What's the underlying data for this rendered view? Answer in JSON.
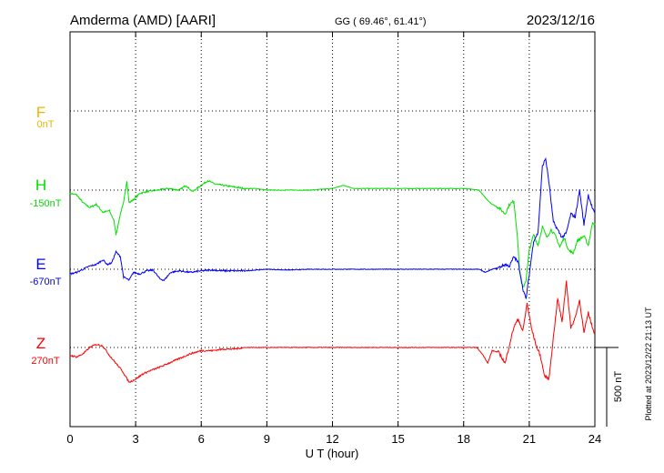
{
  "chart_data": {
    "type": "line",
    "header": {
      "station": "Amderma (AMD)  [AARI]",
      "coords": "GG ( 69.46°,  61.41°)",
      "date": "2023/12/16"
    },
    "xlabel": "U T (hour)",
    "xlim": [
      0,
      24
    ],
    "xticks": [
      "0",
      "3",
      "6",
      "9",
      "12",
      "15",
      "18",
      "21",
      "24"
    ],
    "scale_bar": {
      "label": "500 nT",
      "value_nT": 500
    },
    "plotted_note": "Plotted at 2023/12/22 21:13 UT",
    "grid": true,
    "colors": {
      "F": "#f0b400",
      "H": "#00e000",
      "E": "#0000ff",
      "Z": "#ff0000"
    },
    "series": [
      {
        "name": "F",
        "baseline": "0nT",
        "points": []
      },
      {
        "name": "H",
        "baseline": "-150nT",
        "points": [
          [
            0,
            -20
          ],
          [
            0.3,
            -30
          ],
          [
            0.6,
            -80
          ],
          [
            0.9,
            -110
          ],
          [
            1.2,
            -90
          ],
          [
            1.5,
            -140
          ],
          [
            1.8,
            -130
          ],
          [
            2.0,
            -190
          ],
          [
            2.1,
            -280
          ],
          [
            2.2,
            -220
          ],
          [
            2.3,
            -150
          ],
          [
            2.45,
            -80
          ],
          [
            2.6,
            60
          ],
          [
            2.7,
            -80
          ],
          [
            2.9,
            -60
          ],
          [
            3.2,
            -20
          ],
          [
            3.5,
            -10
          ],
          [
            4.0,
            0
          ],
          [
            4.5,
            10
          ],
          [
            5.0,
            0
          ],
          [
            5.3,
            30
          ],
          [
            5.6,
            -10
          ],
          [
            6.0,
            30
          ],
          [
            6.3,
            60
          ],
          [
            6.6,
            40
          ],
          [
            7.0,
            30
          ],
          [
            7.5,
            20
          ],
          [
            8.0,
            10
          ],
          [
            8.5,
            10
          ],
          [
            9.0,
            0
          ],
          [
            10.0,
            0
          ],
          [
            11.0,
            0
          ],
          [
            12.0,
            10
          ],
          [
            12.5,
            30
          ],
          [
            13.0,
            10
          ],
          [
            14.0,
            10
          ],
          [
            15.0,
            10
          ],
          [
            16.0,
            10
          ],
          [
            17.0,
            10
          ],
          [
            18.0,
            10
          ],
          [
            18.7,
            0
          ],
          [
            19.0,
            -50
          ],
          [
            19.3,
            -90
          ],
          [
            19.6,
            -110
          ],
          [
            19.9,
            -150
          ],
          [
            20.1,
            -90
          ],
          [
            20.3,
            -70
          ],
          [
            20.45,
            -280
          ],
          [
            20.55,
            -500
          ],
          [
            20.7,
            -620
          ],
          [
            20.85,
            -570
          ],
          [
            21.0,
            -380
          ],
          [
            21.2,
            -280
          ],
          [
            21.4,
            -350
          ],
          [
            21.6,
            -230
          ],
          [
            21.8,
            -300
          ],
          [
            22.0,
            -250
          ],
          [
            22.2,
            -290
          ],
          [
            22.4,
            -360
          ],
          [
            22.6,
            -300
          ],
          [
            22.8,
            -380
          ],
          [
            23.0,
            -400
          ],
          [
            23.2,
            -320
          ],
          [
            23.5,
            -290
          ],
          [
            23.7,
            -350
          ],
          [
            23.9,
            -200
          ],
          [
            24.0,
            -220
          ]
        ]
      },
      {
        "name": "E",
        "baseline": "-670nT",
        "points": [
          [
            0,
            -30
          ],
          [
            0.3,
            -20
          ],
          [
            0.6,
            0
          ],
          [
            0.9,
            20
          ],
          [
            1.2,
            30
          ],
          [
            1.5,
            60
          ],
          [
            1.7,
            30
          ],
          [
            1.9,
            40
          ],
          [
            2.1,
            110
          ],
          [
            2.3,
            80
          ],
          [
            2.45,
            -50
          ],
          [
            2.6,
            -60
          ],
          [
            2.7,
            -70
          ],
          [
            2.9,
            -20
          ],
          [
            3.2,
            -30
          ],
          [
            3.5,
            -10
          ],
          [
            3.8,
            -5
          ],
          [
            4.1,
            -60
          ],
          [
            4.3,
            -70
          ],
          [
            4.6,
            -20
          ],
          [
            5.0,
            -10
          ],
          [
            5.5,
            -20
          ],
          [
            6.0,
            -10
          ],
          [
            6.5,
            -5
          ],
          [
            7.0,
            -10
          ],
          [
            8.0,
            -10
          ],
          [
            9.0,
            0
          ],
          [
            10.0,
            -5
          ],
          [
            11.0,
            0
          ],
          [
            12.0,
            0
          ],
          [
            13.0,
            0
          ],
          [
            14.0,
            0
          ],
          [
            15.0,
            0
          ],
          [
            16.0,
            0
          ],
          [
            17.0,
            0
          ],
          [
            18.0,
            0
          ],
          [
            18.7,
            0
          ],
          [
            19.0,
            -20
          ],
          [
            19.3,
            0
          ],
          [
            19.6,
            10
          ],
          [
            19.9,
            30
          ],
          [
            20.1,
            20
          ],
          [
            20.3,
            80
          ],
          [
            20.5,
            40
          ],
          [
            20.7,
            -120
          ],
          [
            20.85,
            -190
          ],
          [
            21.0,
            -30
          ],
          [
            21.2,
            180
          ],
          [
            21.4,
            230
          ],
          [
            21.6,
            650
          ],
          [
            21.75,
            700
          ],
          [
            21.9,
            550
          ],
          [
            22.1,
            300
          ],
          [
            22.3,
            250
          ],
          [
            22.5,
            200
          ],
          [
            22.7,
            230
          ],
          [
            22.9,
            350
          ],
          [
            23.1,
            330
          ],
          [
            23.3,
            500
          ],
          [
            23.5,
            280
          ],
          [
            23.7,
            470
          ],
          [
            23.9,
            380
          ],
          [
            24.0,
            350
          ]
        ]
      },
      {
        "name": "Z",
        "baseline": "270nT",
        "points": [
          [
            0,
            -50
          ],
          [
            0.3,
            -60
          ],
          [
            0.6,
            -40
          ],
          [
            0.9,
            0
          ],
          [
            1.2,
            20
          ],
          [
            1.5,
            10
          ],
          [
            1.8,
            -50
          ],
          [
            2.1,
            -100
          ],
          [
            2.4,
            -150
          ],
          [
            2.7,
            -220
          ],
          [
            3.0,
            -200
          ],
          [
            3.3,
            -170
          ],
          [
            3.6,
            -150
          ],
          [
            4.0,
            -130
          ],
          [
            4.5,
            -100
          ],
          [
            5.0,
            -70
          ],
          [
            5.5,
            -40
          ],
          [
            6.0,
            -20
          ],
          [
            6.5,
            -20
          ],
          [
            7.0,
            -10
          ],
          [
            7.5,
            -10
          ],
          [
            8.0,
            0
          ],
          [
            9.0,
            0
          ],
          [
            10.0,
            0
          ],
          [
            11.0,
            0
          ],
          [
            12.0,
            0
          ],
          [
            13.0,
            0
          ],
          [
            14.0,
            0
          ],
          [
            15.0,
            0
          ],
          [
            16.0,
            0
          ],
          [
            17.0,
            0
          ],
          [
            18.0,
            0
          ],
          [
            18.6,
            0
          ],
          [
            18.9,
            -50
          ],
          [
            19.1,
            -100
          ],
          [
            19.3,
            -20
          ],
          [
            19.6,
            -30
          ],
          [
            19.9,
            -100
          ],
          [
            20.1,
            20
          ],
          [
            20.3,
            130
          ],
          [
            20.5,
            180
          ],
          [
            20.7,
            100
          ],
          [
            20.9,
            280
          ],
          [
            21.1,
            120
          ],
          [
            21.3,
            20
          ],
          [
            21.5,
            -50
          ],
          [
            21.7,
            -180
          ],
          [
            21.9,
            -200
          ],
          [
            22.1,
            60
          ],
          [
            22.3,
            310
          ],
          [
            22.5,
            160
          ],
          [
            22.7,
            420
          ],
          [
            22.9,
            120
          ],
          [
            23.1,
            190
          ],
          [
            23.3,
            300
          ],
          [
            23.5,
            90
          ],
          [
            23.7,
            220
          ],
          [
            23.9,
            120
          ],
          [
            24.0,
            90
          ]
        ]
      }
    ]
  }
}
